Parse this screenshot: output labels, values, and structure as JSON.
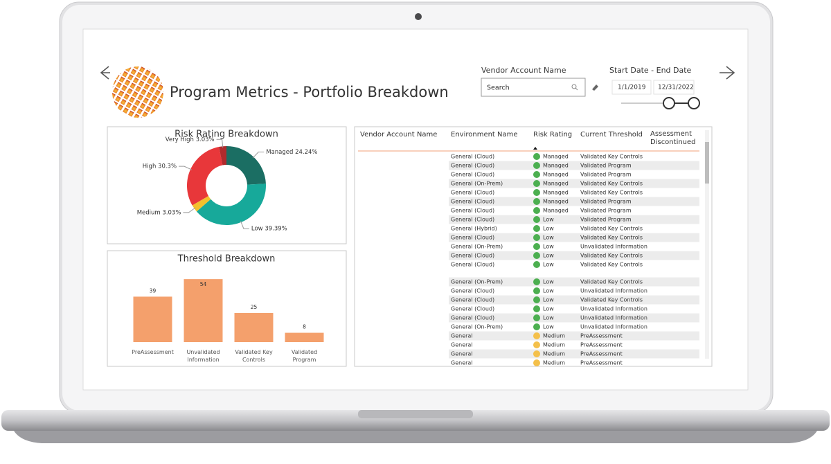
{
  "header": {
    "title": "Program Metrics - Portfolio Breakdown"
  },
  "filters": {
    "vendor_label": "Vendor Account Name",
    "search_placeholder": "Search",
    "date_label": "Start Date - End Date",
    "start_date": "1/1/2019",
    "end_date": "12/31/2022"
  },
  "chart_data": [
    {
      "type": "pie",
      "donut": true,
      "title": "Risk Rating Breakdown",
      "categories": [
        "Managed",
        "Low",
        "Medium",
        "High",
        "Very High"
      ],
      "values": [
        24.24,
        39.39,
        3.03,
        30.3,
        3.03
      ],
      "value_labels": [
        "Managed 24.24%",
        "Low 39.39%",
        "Medium 3.03%",
        "High 30.3%",
        "Very High 3.03%"
      ],
      "colors": [
        "#1b6e63",
        "#17a99a",
        "#f3c02d",
        "#e8373a",
        "#b02b2d"
      ]
    },
    {
      "type": "bar",
      "title": "Threshold Breakdown",
      "categories": [
        "PreAssessment",
        "Unvalidated Information",
        "Validated Key Controls",
        "Validated Program"
      ],
      "values": [
        39,
        54,
        25,
        8
      ],
      "color": "#f4a06c",
      "ylim": [
        0,
        60
      ]
    }
  ],
  "table": {
    "columns": [
      "Vendor Account Name",
      "Environment Name",
      "Risk Rating",
      "Current Threshold",
      "Assessment Discontinued"
    ],
    "rows": [
      [
        "General (Cloud)",
        "Managed",
        "Validated Key Controls"
      ],
      [
        "General (Cloud)",
        "Managed",
        "Validated Program"
      ],
      [
        "General (Cloud)",
        "Managed",
        "Validated Program"
      ],
      [
        "General (On-Prem)",
        "Managed",
        "Validated Key Controls"
      ],
      [
        "General (Cloud)",
        "Managed",
        "Validated Key Controls"
      ],
      [
        "General (Cloud)",
        "Managed",
        "Validated Program"
      ],
      [
        "General (Cloud)",
        "Managed",
        "Validated Program"
      ],
      [
        "General (Cloud)",
        "Low",
        "Validated Program"
      ],
      [
        "General (Hybrid)",
        "Low",
        "Validated Key Controls"
      ],
      [
        "General (Cloud)",
        "Low",
        "Validated Key Controls"
      ],
      [
        "General (On-Prem)",
        "Low",
        "Unvalidated Information"
      ],
      [
        "General (Cloud)",
        "Low",
        "Validated Key Controls"
      ],
      [
        "General (Cloud)",
        "Low",
        "Validated Key Controls"
      ],
      [
        "General (On-Prem)",
        "Low",
        "Validated Key Controls"
      ],
      [
        "General (Cloud)",
        "Low",
        "Unvalidated Information"
      ],
      [
        "General (Cloud)",
        "Low",
        "Validated Key Controls"
      ],
      [
        "General (Cloud)",
        "Low",
        "Unvalidated Information"
      ],
      [
        "General (Cloud)",
        "Low",
        "Unvalidated Information"
      ],
      [
        "General (On-Prem)",
        "Low",
        "Unvalidated Information"
      ],
      [
        "General",
        "Medium",
        "PreAssessment"
      ],
      [
        "General",
        "Medium",
        "PreAssessment"
      ],
      [
        "General",
        "Medium",
        "PreAssessment"
      ],
      [
        "General",
        "Medium",
        "PreAssessment"
      ]
    ]
  }
}
